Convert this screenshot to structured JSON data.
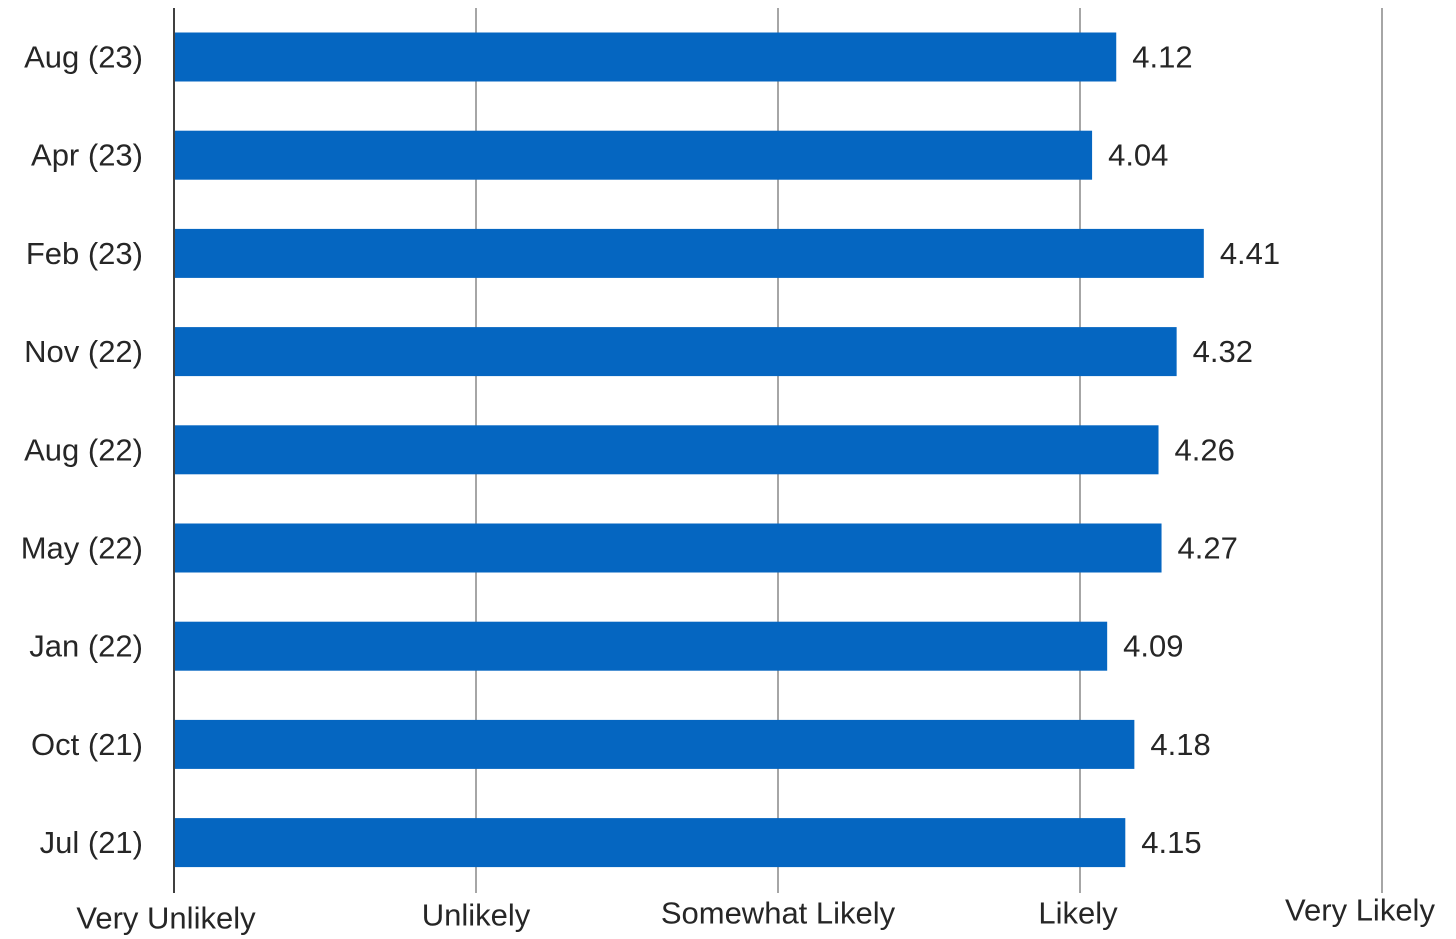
{
  "chart_data": {
    "type": "bar",
    "orientation": "horizontal",
    "title": "",
    "xlabel": "",
    "ylabel": "",
    "categories": [
      "Aug (23)",
      "Apr (23)",
      "Feb (23)",
      "Nov (22)",
      "Aug (22)",
      "May (22)",
      "Jan (22)",
      "Oct (21)",
      "Jul (21)"
    ],
    "values": [
      4.12,
      4.04,
      4.41,
      4.32,
      4.26,
      4.27,
      4.09,
      4.18,
      4.15
    ],
    "value_labels": [
      "4.12",
      "4.04",
      "4.41",
      "4.32",
      "4.26",
      "4.27",
      "4.09",
      "4.18",
      "4.15"
    ],
    "xlim": [
      1,
      5
    ],
    "x_ticks": [
      {
        "value": 1,
        "label": "Very Unlikely"
      },
      {
        "value": 2,
        "label": "Unlikely"
      },
      {
        "value": 3,
        "label": "Somewhat Likely"
      },
      {
        "value": 4,
        "label": "Likely"
      },
      {
        "value": 5,
        "label": "Very Likely"
      }
    ],
    "grid": "vertical",
    "legend": "none",
    "colors": {
      "bar": "#0566C1",
      "grid": "#A6A6A6",
      "axis": "#404040",
      "text": "#262626"
    }
  }
}
